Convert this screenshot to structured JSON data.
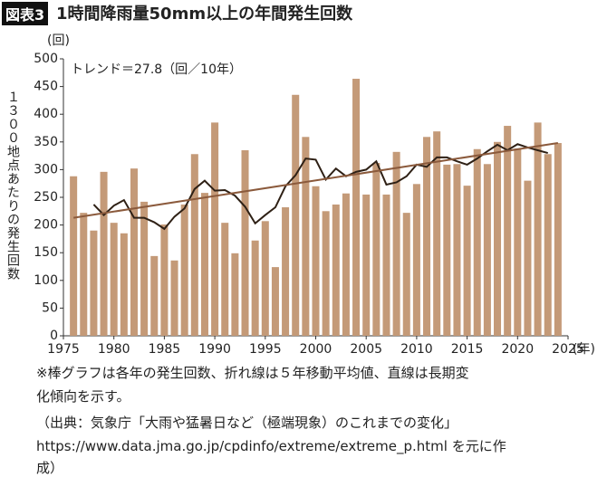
{
  "chart_data": {
    "type": "bar",
    "badge": "図表3",
    "title": "1時間降雨量50mm以上の年間発生回数",
    "y_unit": "(回)",
    "x_unit": "(年)",
    "ylabel": "１３００地点あたりの発生回数",
    "annotation": "トレンド＝27.8（回／10年）",
    "notes": [
      "※棒グラフは各年の発生回数、折れ線は５年移動平均値、直線は長期変",
      "化傾向を示す。",
      "（出典：気象庁「大雨や猛暑日など（極端現象）のこれまでの変化」",
      "https://www.data.jma.go.jp/cpdinfo/extreme/extreme_p.html を元に作",
      "成）"
    ],
    "xlim": [
      1975,
      2025
    ],
    "xticks": [
      1975,
      1980,
      1985,
      1990,
      1995,
      2000,
      2005,
      2010,
      2015,
      2020,
      2025
    ],
    "ylim": [
      0,
      500
    ],
    "yticks": [
      0,
      50,
      100,
      150,
      200,
      250,
      300,
      350,
      400,
      450,
      500
    ],
    "series": [
      {
        "kind": "bar",
        "color": "#c49a78",
        "x": [
          1976,
          1977,
          1978,
          1979,
          1980,
          1981,
          1982,
          1983,
          1984,
          1985,
          1986,
          1987,
          1988,
          1989,
          1990,
          1991,
          1992,
          1993,
          1994,
          1995,
          1996,
          1997,
          1998,
          1999,
          2000,
          2001,
          2002,
          2003,
          2004,
          2005,
          2006,
          2007,
          2008,
          2009,
          2010,
          2011,
          2012,
          2013,
          2014,
          2015,
          2016,
          2017,
          2018,
          2019,
          2020,
          2021,
          2022,
          2023,
          2024
        ],
        "values": [
          288,
          222,
          190,
          296,
          204,
          185,
          302,
          242,
          144,
          201,
          136,
          237,
          328,
          258,
          385,
          204,
          149,
          335,
          172,
          207,
          124,
          232,
          435,
          359,
          270,
          225,
          237,
          257,
          464,
          255,
          312,
          255,
          332,
          222,
          274,
          359,
          369,
          309,
          310,
          271,
          337,
          310,
          350,
          379,
          338,
          280,
          385,
          328,
          348
        ]
      },
      {
        "kind": "line",
        "color": "#2e2015",
        "x": [
          1978,
          1979,
          1980,
          1981,
          1982,
          1983,
          1984,
          1985,
          1986,
          1987,
          1988,
          1989,
          1990,
          1991,
          1992,
          1993,
          1994,
          1995,
          1996,
          1997,
          1998,
          1999,
          2000,
          2001,
          2002,
          2003,
          2004,
          2005,
          2006,
          2007,
          2008,
          2009,
          2010,
          2011,
          2012,
          2013,
          2014,
          2015,
          2016,
          2017,
          2018,
          2019,
          2020,
          2021,
          2022,
          2023
        ],
        "values": [
          237,
          218,
          235,
          245,
          213,
          213,
          205,
          193,
          215,
          230,
          265,
          280,
          262,
          263,
          253,
          233,
          203,
          218,
          232,
          270,
          290,
          320,
          318,
          282,
          302,
          288,
          296,
          300,
          315,
          273,
          277,
          288,
          309,
          305,
          322,
          322,
          315,
          309,
          320,
          333,
          345,
          335,
          346,
          340,
          335,
          330
        ]
      },
      {
        "kind": "line",
        "color": "#8b5a3c",
        "x": [
          1976,
          2024
        ],
        "values": [
          213,
          348
        ]
      }
    ]
  }
}
